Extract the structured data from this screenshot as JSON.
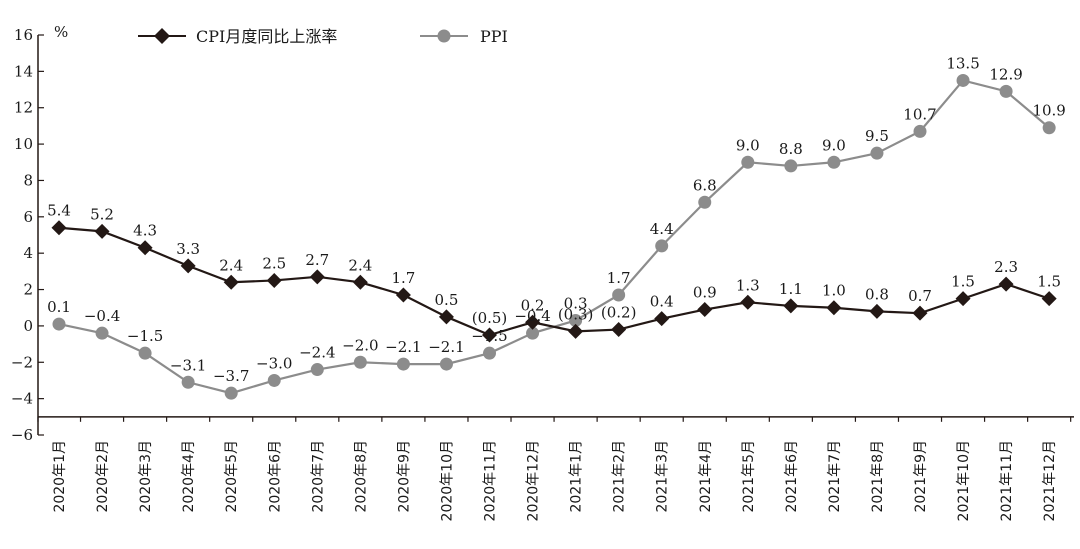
{
  "chart_data": {
    "type": "line",
    "unit": "%",
    "ylim": [
      -6,
      16
    ],
    "yticks": [
      16,
      14,
      12,
      10,
      8,
      6,
      4,
      2,
      0,
      -2,
      -4,
      -6
    ],
    "ytick_labels": [
      "16",
      "14",
      "12",
      "10",
      "8",
      "6",
      "4",
      "2",
      "0",
      "−2",
      "−4",
      "−6"
    ],
    "grid": false,
    "legend_position": "top-left",
    "categories": [
      "2020年1月",
      "2020年2月",
      "2020年3月",
      "2020年4月",
      "2020年5月",
      "2020年6月",
      "2020年7月",
      "2020年8月",
      "2020年9月",
      "2020年10月",
      "2020年11月",
      "2020年12月",
      "2021年1月",
      "2021年2月",
      "2021年3月",
      "2021年4月",
      "2021年5月",
      "2021年6月",
      "2021年7月",
      "2021年8月",
      "2021年9月",
      "2021年10月",
      "2021年11月",
      "2021年12月"
    ],
    "series": [
      {
        "name": "CPI月度同比上涨率",
        "color": "#231815",
        "marker": "diamond",
        "values": [
          5.4,
          5.2,
          4.3,
          3.3,
          2.4,
          2.5,
          2.7,
          2.4,
          1.7,
          0.5,
          -0.5,
          0.2,
          -0.3,
          -0.2,
          0.4,
          0.9,
          1.3,
          1.1,
          1.0,
          0.8,
          0.7,
          1.5,
          2.3,
          1.5
        ],
        "labels": [
          "5.4",
          "5.2",
          "4.3",
          "3.3",
          "2.4",
          "2.5",
          "2.7",
          "2.4",
          "1.7",
          "0.5",
          "(0.5)",
          "0.2",
          "(0.3)",
          "(0.2)",
          "0.4",
          "0.9",
          "1.3",
          "1.1",
          "1.0",
          "0.8",
          "0.7",
          "1.5",
          "2.3",
          "1.5"
        ]
      },
      {
        "name": "PPI",
        "color": "#8c8c8c",
        "marker": "circle",
        "values": [
          0.1,
          -0.4,
          -1.5,
          -3.1,
          -3.7,
          -3.0,
          -2.4,
          -2.0,
          -2.1,
          -2.1,
          -1.5,
          -0.4,
          0.3,
          1.7,
          4.4,
          6.8,
          9.0,
          8.8,
          9.0,
          9.5,
          10.7,
          13.5,
          12.9,
          10.9
        ],
        "labels": [
          "0.1",
          "−0.4",
          "−1.5",
          "−3.1",
          "−3.7",
          "−3.0",
          "−2.4",
          "−2.0",
          "−2.1",
          "−2.1",
          "−1.5",
          "−0.4",
          "0.3",
          "1.7",
          "4.4",
          "6.8",
          "9.0",
          "8.8",
          "9.0",
          "9.5",
          "10.7",
          "13.5",
          "12.9",
          "10.9"
        ]
      }
    ]
  }
}
